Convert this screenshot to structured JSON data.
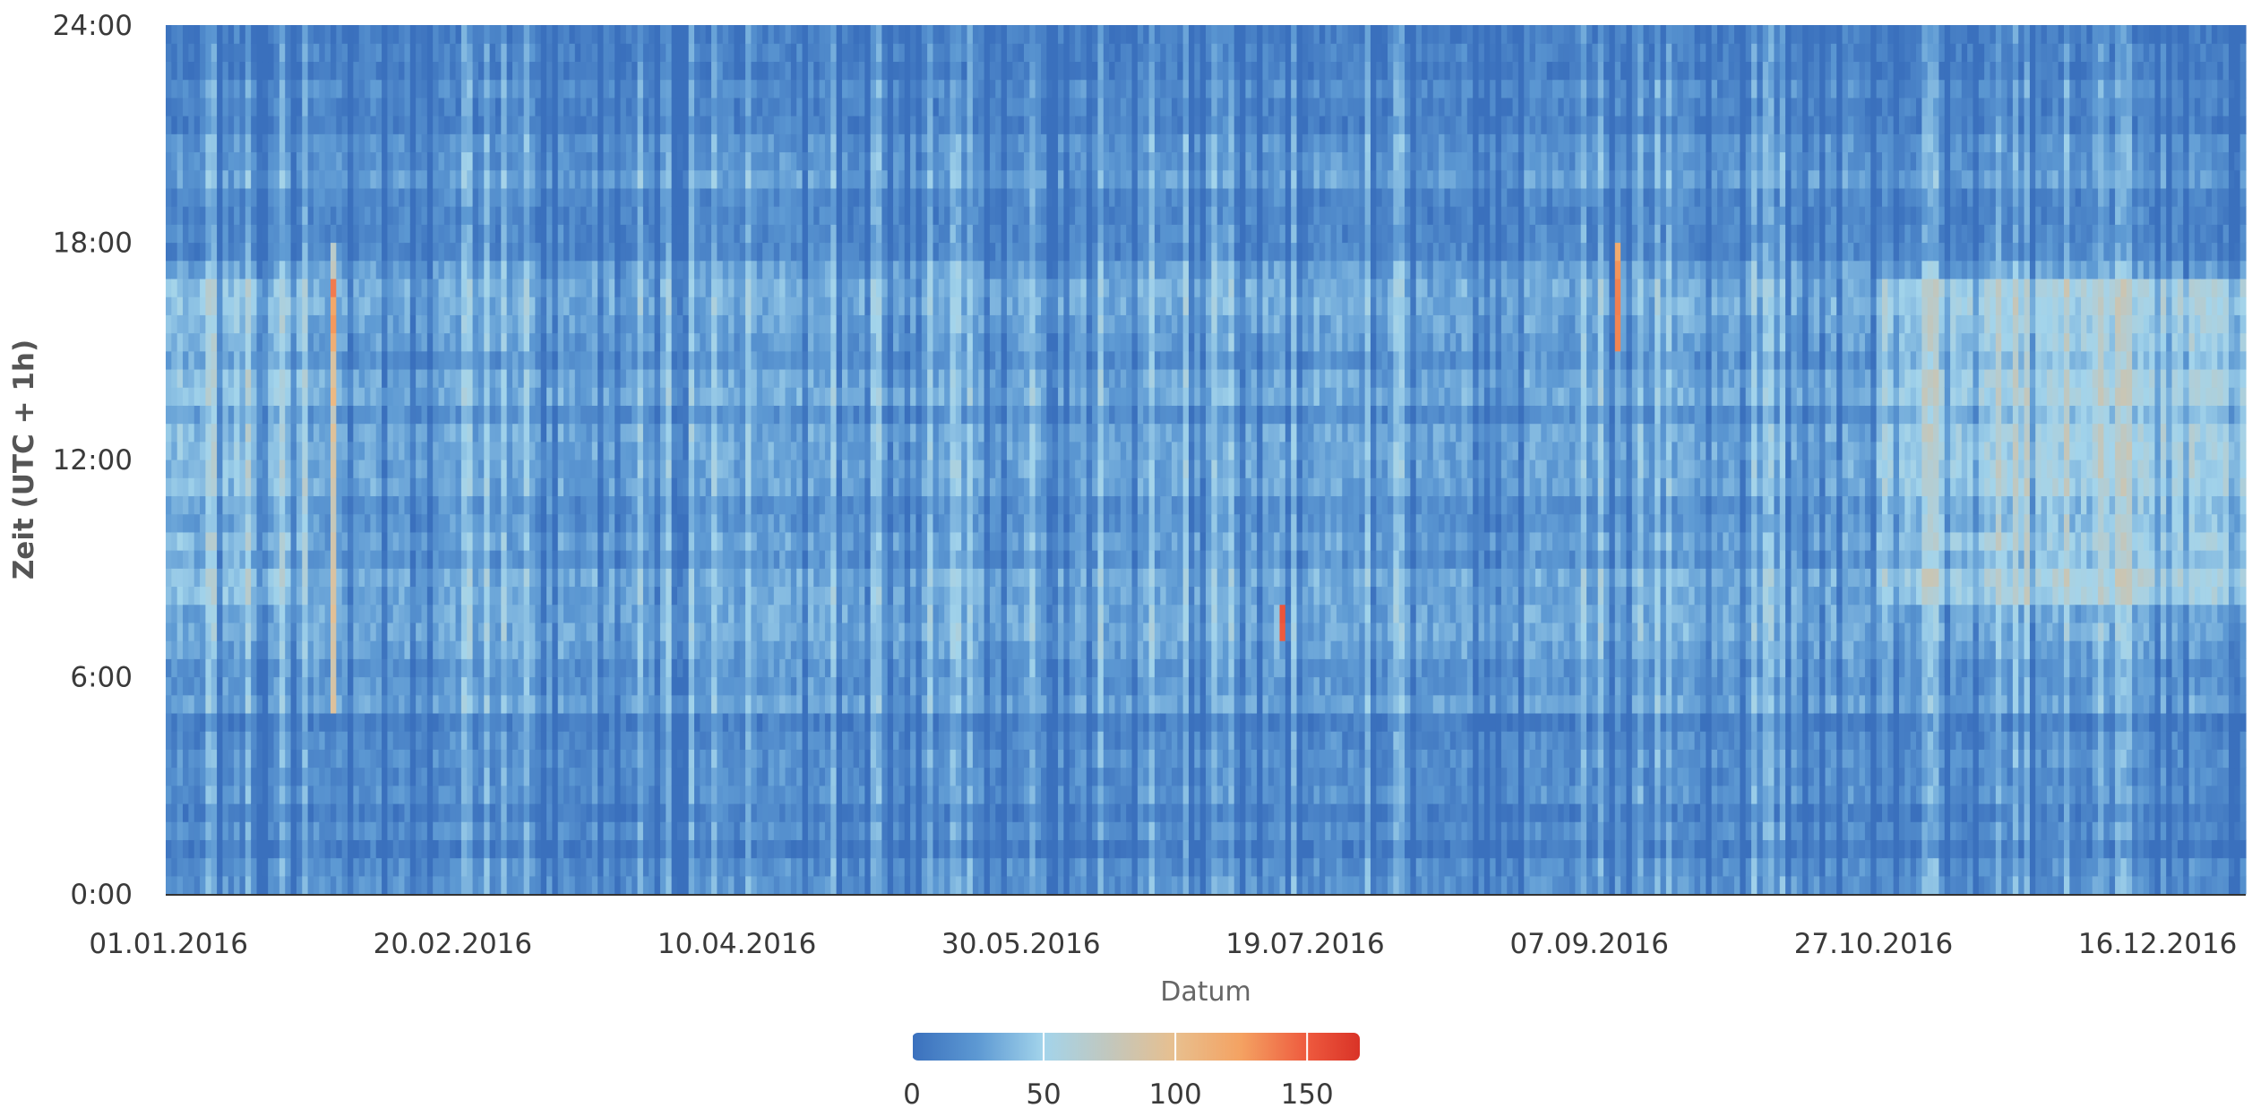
{
  "chart_data": {
    "type": "heatmap",
    "title": "",
    "xlabel": "Datum",
    "ylabel": "Zeit (UTC + 1h)",
    "x_start": "2016-01-01",
    "x_end": "2016-12-31",
    "x_ticks": [
      "01.01.2016",
      "20.02.2016",
      "10.04.2016",
      "30.05.2016",
      "19.07.2016",
      "07.09.2016",
      "27.10.2016",
      "16.12.2016"
    ],
    "y_ticks": [
      "0:00",
      "6:00",
      "12:00",
      "18:00",
      "24:00"
    ],
    "ylim": [
      0,
      24
    ],
    "colorbar": {
      "ticks": [
        0,
        50,
        100,
        150
      ],
      "range": [
        0,
        170
      ],
      "stops": [
        {
          "value": 0,
          "color": "#3a70bd"
        },
        {
          "value": 25,
          "color": "#5d99d3"
        },
        {
          "value": 50,
          "color": "#a3d4eb"
        },
        {
          "value": 75,
          "color": "#c2c7bd"
        },
        {
          "value": 100,
          "color": "#e8bf8e"
        },
        {
          "value": 125,
          "color": "#f4a262"
        },
        {
          "value": 150,
          "color": "#ee5a3e"
        },
        {
          "value": 170,
          "color": "#d93327"
        }
      ],
      "placement": "bottom-center"
    },
    "grid": false
  }
}
